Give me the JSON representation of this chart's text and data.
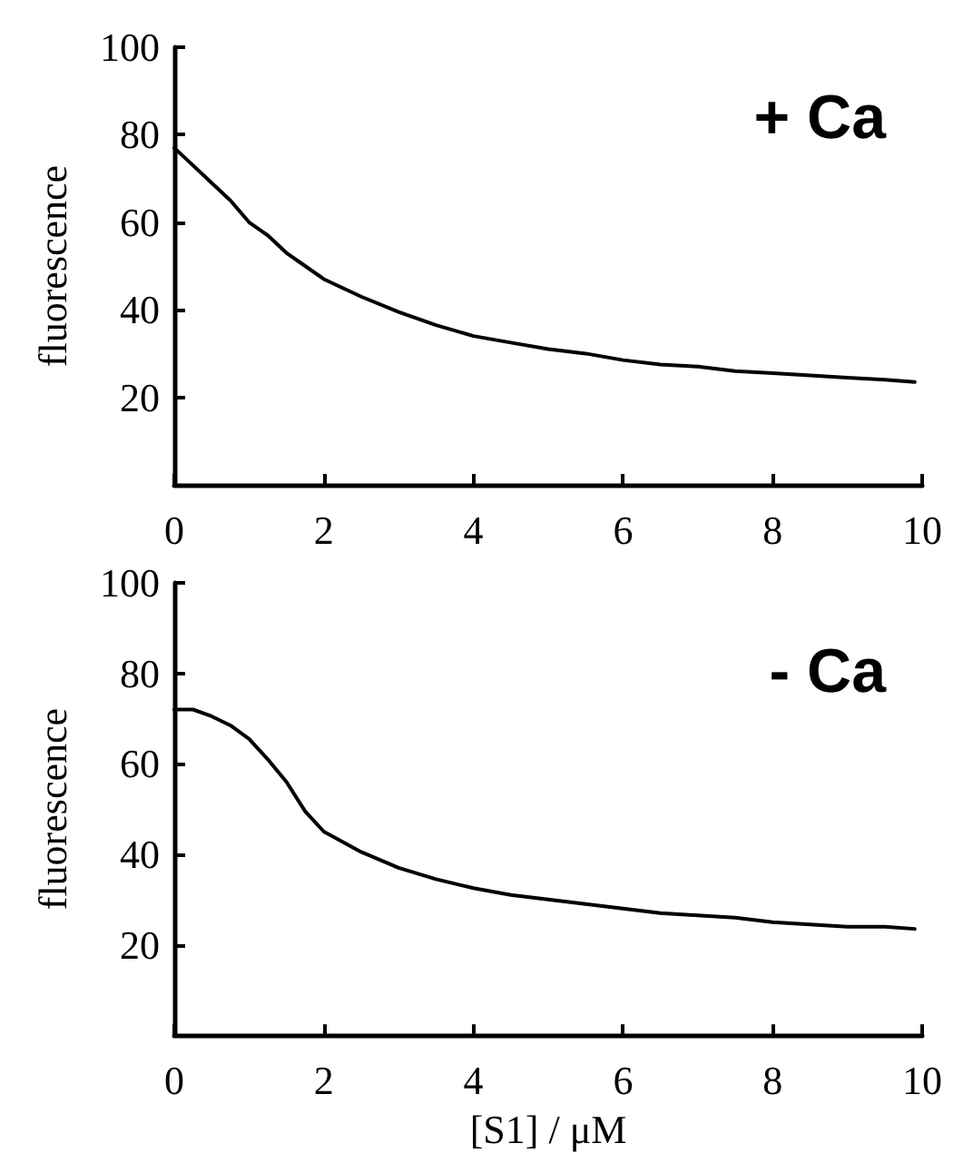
{
  "chart_data": [
    {
      "type": "line",
      "ylabel": "fluorescence",
      "annotations": [
        "+ Ca"
      ],
      "xlim": [
        0,
        10
      ],
      "xticks": [
        0,
        2,
        4,
        6,
        8,
        10
      ],
      "ylim": [
        0,
        100
      ],
      "yticks": [
        20,
        40,
        60,
        80,
        100
      ],
      "grid": false,
      "marker": "none",
      "line_style": "solid",
      "series": [
        {
          "color": "#000000",
          "x": [
            0,
            0.25,
            0.5,
            0.75,
            1,
            1.25,
            1.5,
            1.75,
            2,
            2.5,
            3,
            3.5,
            4,
            4.5,
            5,
            5.5,
            6,
            6.5,
            7,
            7.5,
            8,
            8.5,
            9,
            9.5,
            9.9
          ],
          "values": [
            77,
            73,
            69,
            65,
            60,
            57,
            53,
            50,
            47,
            43,
            39.5,
            36.5,
            34,
            32.5,
            31,
            30,
            28.5,
            27.5,
            27,
            26,
            25.5,
            25,
            24.5,
            24,
            23.5
          ]
        }
      ]
    },
    {
      "type": "line",
      "xlabel": "[S1] / μM",
      "ylabel": "fluorescence",
      "annotations": [
        "- Ca"
      ],
      "xlim": [
        0,
        10
      ],
      "xticks": [
        0,
        2,
        4,
        6,
        8,
        10
      ],
      "ylim": [
        0,
        100
      ],
      "yticks": [
        20,
        40,
        60,
        80,
        100
      ],
      "grid": false,
      "marker": "none",
      "line_style": "solid",
      "series": [
        {
          "color": "#000000",
          "x": [
            0,
            0.25,
            0.5,
            0.75,
            1,
            1.25,
            1.5,
            1.75,
            2,
            2.5,
            3,
            3.5,
            4,
            4.5,
            5,
            5.5,
            6,
            6.5,
            7,
            7.5,
            8,
            8.5,
            9,
            9.5,
            9.9
          ],
          "values": [
            72,
            72,
            70.5,
            68.5,
            65.5,
            61,
            56,
            49.5,
            45,
            40.5,
            37,
            34.5,
            32.5,
            31,
            30,
            29,
            28,
            27,
            26.5,
            26,
            25,
            24.5,
            24,
            24,
            23.5
          ]
        }
      ]
    }
  ]
}
